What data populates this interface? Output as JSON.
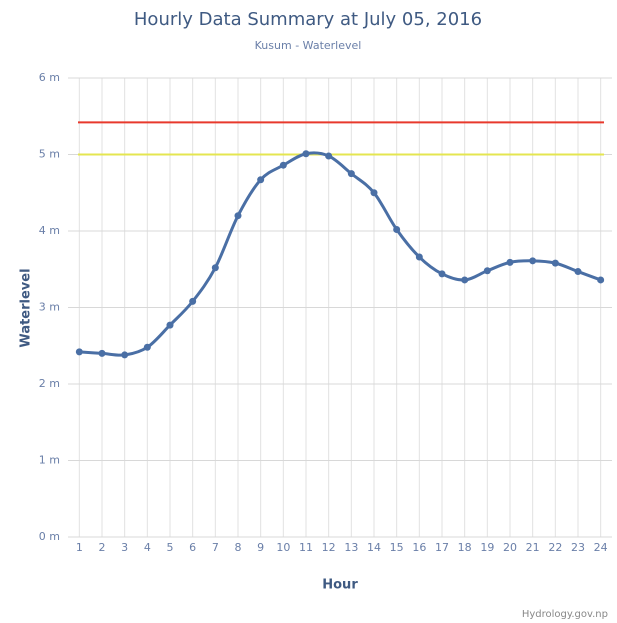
{
  "chart_data": {
    "type": "line",
    "title": "Hourly Data Summary at July 05, 2016",
    "subtitle": "Kusum - Waterlevel",
    "x_label": "Hour",
    "y_label": "Waterlevel",
    "credits": "Hydrology.gov.np",
    "categories": [
      "1",
      "2",
      "3",
      "4",
      "5",
      "6",
      "7",
      "8",
      "9",
      "10",
      "11",
      "12",
      "13",
      "14",
      "15",
      "16",
      "17",
      "18",
      "19",
      "20",
      "21",
      "22",
      "23",
      "24"
    ],
    "values": [
      2.42,
      2.4,
      2.38,
      2.48,
      2.77,
      3.08,
      3.52,
      4.2,
      4.67,
      4.86,
      5.01,
      4.98,
      4.75,
      4.5,
      4.02,
      3.66,
      3.44,
      3.36,
      3.48,
      3.59,
      3.61,
      3.58,
      3.47,
      3.36
    ],
    "color": "#4a6fa5",
    "plot_lines": [
      {
        "value": 5.42,
        "color": "#e8392c"
      },
      {
        "value": 5,
        "color": "#e4e650"
      }
    ],
    "ylim": [
      0,
      6
    ],
    "yticks": [
      {
        "value": 0,
        "label": "0 m"
      },
      {
        "value": 1,
        "label": "1 m"
      },
      {
        "value": 2,
        "label": "2 m"
      },
      {
        "value": 3,
        "label": "3 m"
      },
      {
        "value": 4,
        "label": "4 m"
      },
      {
        "value": 5,
        "label": "5 m"
      },
      {
        "value": 6,
        "label": "6 m"
      }
    ],
    "grid": true
  }
}
